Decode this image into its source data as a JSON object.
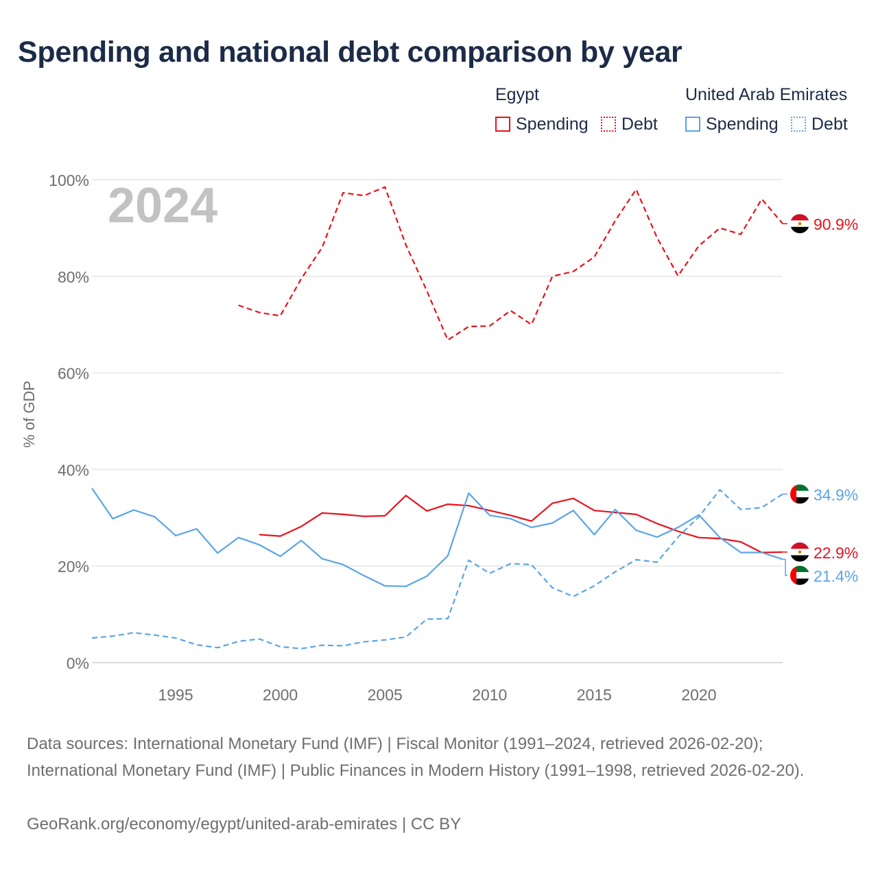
{
  "title": "Spending and national debt comparison by year",
  "legend": {
    "groups": [
      {
        "country": "Egypt",
        "spending_label": "Spending",
        "debt_label": "Debt",
        "color": "#e8111b"
      },
      {
        "country": "United Arab Emirates",
        "spending_label": "Spending",
        "debt_label": "Debt",
        "color": "#5aa4e6"
      }
    ]
  },
  "chart_data": {
    "type": "line",
    "title": "Spending and national debt comparison by year",
    "year_watermark": "2024",
    "ylabel": "% of GDP",
    "xlabel": "",
    "xlim": [
      1991,
      2024
    ],
    "ylim": [
      0,
      100
    ],
    "x_ticks": [
      1995,
      2000,
      2005,
      2010,
      2015,
      2020
    ],
    "y_ticks": [
      0,
      20,
      40,
      60,
      80,
      100
    ],
    "y_tick_labels": [
      "0%",
      "20%",
      "40%",
      "60%",
      "80%",
      "100%"
    ],
    "grid": true,
    "series": [
      {
        "name": "Egypt Debt",
        "country": "Egypt",
        "metric": "Debt",
        "color": "#e8111b",
        "dashed": true,
        "end_label": "90.9%",
        "end_value": 90.9,
        "points": [
          [
            1998,
            74
          ],
          [
            1999,
            72.5
          ],
          [
            2000,
            71.8
          ],
          [
            2001,
            79.5
          ],
          [
            2002,
            86
          ],
          [
            2003,
            97.3
          ],
          [
            2004,
            96.7
          ],
          [
            2005,
            98.5
          ],
          [
            2006,
            86.5
          ],
          [
            2007,
            77
          ],
          [
            2008,
            66.8
          ],
          [
            2009,
            69.6
          ],
          [
            2010,
            69.7
          ],
          [
            2011,
            72.9
          ],
          [
            2012,
            70
          ],
          [
            2013,
            80
          ],
          [
            2014,
            81
          ],
          [
            2015,
            84
          ],
          [
            2016,
            91.5
          ],
          [
            2017,
            98
          ],
          [
            2018,
            88
          ],
          [
            2019,
            80.1
          ],
          [
            2020,
            86.3
          ],
          [
            2021,
            90
          ],
          [
            2022,
            88.7
          ],
          [
            2023,
            96
          ],
          [
            2024,
            90.9
          ]
        ]
      },
      {
        "name": "Egypt Spending",
        "country": "Egypt",
        "metric": "Spending",
        "color": "#e8111b",
        "dashed": false,
        "end_label": "22.9%",
        "end_value": 22.9,
        "points": [
          [
            1999,
            26.5
          ],
          [
            2000,
            26.2
          ],
          [
            2001,
            28.2
          ],
          [
            2002,
            31
          ],
          [
            2003,
            30.7
          ],
          [
            2004,
            30.3
          ],
          [
            2005,
            30.4
          ],
          [
            2006,
            34.6
          ],
          [
            2007,
            31.4
          ],
          [
            2008,
            32.8
          ],
          [
            2009,
            32.5
          ],
          [
            2010,
            31.5
          ],
          [
            2011,
            30.5
          ],
          [
            2012,
            29.3
          ],
          [
            2013,
            33
          ],
          [
            2014,
            34
          ],
          [
            2015,
            31.5
          ],
          [
            2016,
            31.1
          ],
          [
            2017,
            30.7
          ],
          [
            2018,
            28.8
          ],
          [
            2019,
            27.2
          ],
          [
            2020,
            25.9
          ],
          [
            2021,
            25.7
          ],
          [
            2022,
            25
          ],
          [
            2023,
            22.8
          ],
          [
            2024,
            22.9
          ]
        ]
      },
      {
        "name": "United Arab Emirates Spending",
        "country": "United Arab Emirates",
        "metric": "Spending",
        "color": "#5aa4e6",
        "dashed": false,
        "end_label": "21.4%",
        "end_value": 21.4,
        "points": [
          [
            1991,
            36.1
          ],
          [
            1992,
            29.8
          ],
          [
            1993,
            31.6
          ],
          [
            1994,
            30.2
          ],
          [
            1995,
            26.3
          ],
          [
            1996,
            27.7
          ],
          [
            1997,
            22.7
          ],
          [
            1998,
            25.9
          ],
          [
            1999,
            24.4
          ],
          [
            2000,
            22
          ],
          [
            2001,
            25.3
          ],
          [
            2002,
            21.5
          ],
          [
            2003,
            20.3
          ],
          [
            2004,
            18
          ],
          [
            2005,
            15.9
          ],
          [
            2006,
            15.8
          ],
          [
            2007,
            17.9
          ],
          [
            2008,
            22.1
          ],
          [
            2009,
            35.1
          ],
          [
            2010,
            30.5
          ],
          [
            2011,
            29.8
          ],
          [
            2012,
            28
          ],
          [
            2013,
            28.9
          ],
          [
            2014,
            31.5
          ],
          [
            2015,
            26.5
          ],
          [
            2016,
            31.7
          ],
          [
            2017,
            27.4
          ],
          [
            2018,
            26
          ],
          [
            2019,
            28
          ],
          [
            2020,
            30.6
          ],
          [
            2021,
            25.9
          ],
          [
            2022,
            22.8
          ],
          [
            2023,
            22.8
          ],
          [
            2024,
            21.4
          ]
        ]
      },
      {
        "name": "United Arab Emirates Debt",
        "country": "United Arab Emirates",
        "metric": "Debt",
        "color": "#5aa4e6",
        "dashed": true,
        "end_label": "34.9%",
        "end_value": 34.9,
        "points": [
          [
            1991,
            5.1
          ],
          [
            1992,
            5.5
          ],
          [
            1993,
            6.2
          ],
          [
            1994,
            5.7
          ],
          [
            1995,
            5.1
          ],
          [
            1996,
            3.7
          ],
          [
            1997,
            3.1
          ],
          [
            1998,
            4.4
          ],
          [
            1999,
            4.9
          ],
          [
            2000,
            3.3
          ],
          [
            2001,
            2.9
          ],
          [
            2002,
            3.6
          ],
          [
            2003,
            3.5
          ],
          [
            2004,
            4.3
          ],
          [
            2005,
            4.7
          ],
          [
            2006,
            5.3
          ],
          [
            2007,
            9
          ],
          [
            2008,
            9.1
          ],
          [
            2009,
            21.2
          ],
          [
            2010,
            18.5
          ],
          [
            2011,
            20.5
          ],
          [
            2012,
            20.3
          ],
          [
            2013,
            15.5
          ],
          [
            2014,
            13.7
          ],
          [
            2015,
            15.9
          ],
          [
            2016,
            18.8
          ],
          [
            2017,
            21.3
          ],
          [
            2018,
            20.8
          ],
          [
            2019,
            26
          ],
          [
            2020,
            30.2
          ],
          [
            2021,
            35.8
          ],
          [
            2022,
            31.7
          ],
          [
            2023,
            32.1
          ],
          [
            2024,
            34.9
          ]
        ]
      }
    ]
  },
  "footer": {
    "sources": "Data sources: International Monetary Fund (IMF) | Fiscal Monitor (1991–2024, retrieved 2026-02-20); International Monetary Fund (IMF) | Public Finances in Modern History (1991–1998, retrieved 2026-02-20).",
    "credit": "GeoRank.org/economy/egypt/united-arab-emirates | CC BY"
  }
}
